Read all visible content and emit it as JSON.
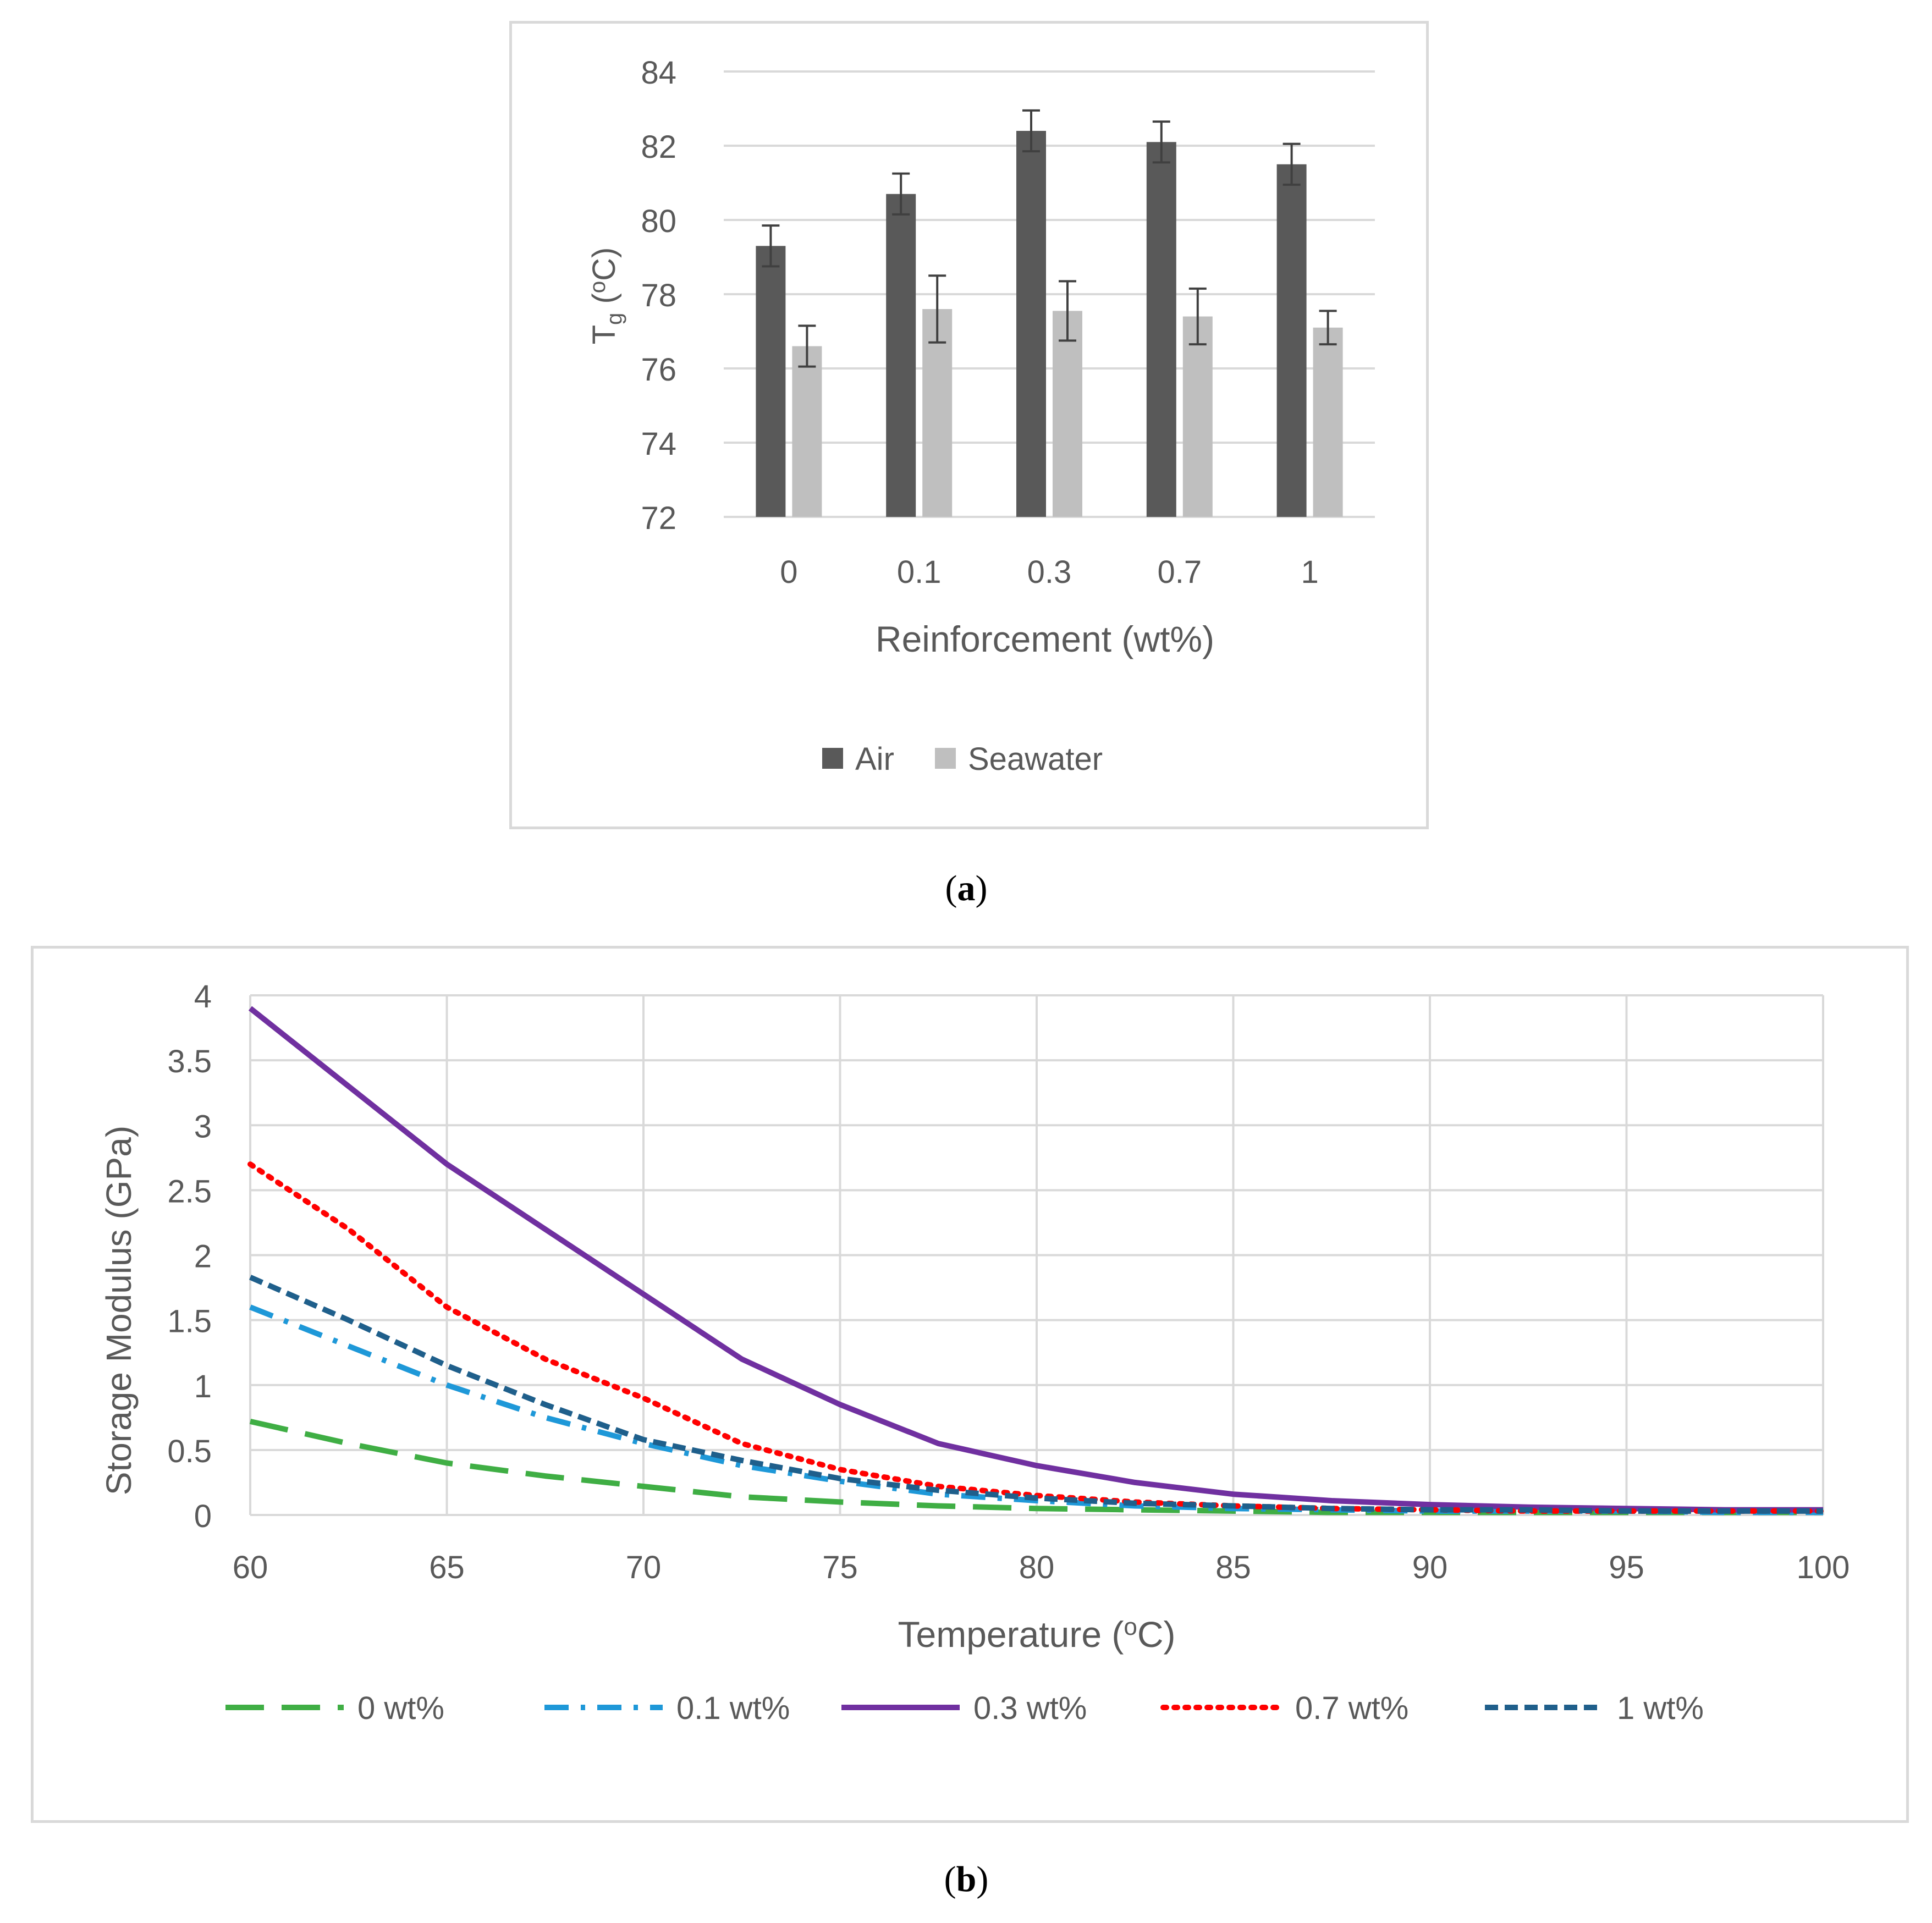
{
  "chart_data": [
    {
      "type": "bar",
      "id": "a",
      "caption_label": "a",
      "categories": [
        "0",
        "0.1",
        "0.3",
        "0.7",
        "1"
      ],
      "series": [
        {
          "name": "Air",
          "color": "#595959",
          "values": [
            79.3,
            80.7,
            82.4,
            82.1,
            81.5
          ],
          "errors": [
            0.55,
            0.55,
            0.55,
            0.55,
            0.55
          ]
        },
        {
          "name": "Seawater",
          "color": "#bfbfbf",
          "values": [
            76.6,
            77.6,
            77.55,
            77.4,
            77.1
          ],
          "errors": [
            0.55,
            0.9,
            0.8,
            0.75,
            0.45
          ]
        }
      ],
      "ylabel_main": "T",
      "ylabel_sub": "g",
      "ylabel_open": " (",
      "ylabel_sup": "o",
      "ylabel_close": "C)",
      "xlabel": "Reinforcement (wt%)",
      "ylim": [
        72,
        84
      ],
      "yticks": [
        "72",
        "74",
        "76",
        "78",
        "80",
        "82",
        "84"
      ],
      "legend_position": "bottom-center"
    },
    {
      "type": "line",
      "id": "b",
      "caption_label": "b",
      "x": [
        60,
        62.5,
        65,
        67.5,
        70,
        72.5,
        75,
        77.5,
        80,
        82.5,
        85,
        87.5,
        90,
        92.5,
        95,
        97.5,
        100
      ],
      "series": [
        {
          "name": "0 wt%",
          "color": "#3fae44",
          "dash": "long-dash",
          "values": [
            0.72,
            0.55,
            0.4,
            0.3,
            0.22,
            0.14,
            0.1,
            0.07,
            0.05,
            0.04,
            0.03,
            0.02,
            0.02,
            0.02,
            0.02,
            0.02,
            0.02
          ]
        },
        {
          "name": "0.1 wt%",
          "color": "#1e98d8",
          "dash": "dash-dot",
          "values": [
            1.6,
            1.3,
            1.0,
            0.75,
            0.55,
            0.38,
            0.26,
            0.16,
            0.11,
            0.07,
            0.05,
            0.04,
            0.03,
            0.03,
            0.03,
            0.02,
            0.02
          ]
        },
        {
          "name": "0.3 wt%",
          "color": "#7030a0",
          "dash": "solid",
          "values": [
            3.9,
            3.3,
            2.7,
            2.2,
            1.7,
            1.2,
            0.85,
            0.55,
            0.38,
            0.25,
            0.16,
            0.11,
            0.08,
            0.06,
            0.05,
            0.04,
            0.04
          ]
        },
        {
          "name": "0.7 wt%",
          "color": "#ff0000",
          "dash": "dot",
          "values": [
            2.7,
            2.2,
            1.6,
            1.2,
            0.9,
            0.55,
            0.35,
            0.22,
            0.15,
            0.1,
            0.07,
            0.05,
            0.04,
            0.03,
            0.03,
            0.03,
            0.03
          ]
        },
        {
          "name": "1 wt%",
          "color": "#1f5f8b",
          "dash": "short-dash",
          "values": [
            1.83,
            1.5,
            1.15,
            0.85,
            0.58,
            0.42,
            0.28,
            0.19,
            0.13,
            0.09,
            0.07,
            0.05,
            0.04,
            0.04,
            0.03,
            0.03,
            0.03
          ]
        }
      ],
      "ylabel": "Storage Modulus (GPa)",
      "xlabel_main": "Temperature (",
      "xlabel_sup": "o",
      "xlabel_close": "C)",
      "xlim": [
        60,
        100
      ],
      "ylim": [
        0,
        4
      ],
      "xticks": [
        "60",
        "65",
        "70",
        "75",
        "80",
        "85",
        "90",
        "95",
        "100"
      ],
      "yticks": [
        "0",
        "0.5",
        "1",
        "1.5",
        "2",
        "2.5",
        "3",
        "3.5",
        "4"
      ],
      "legend_position": "bottom-center"
    }
  ]
}
